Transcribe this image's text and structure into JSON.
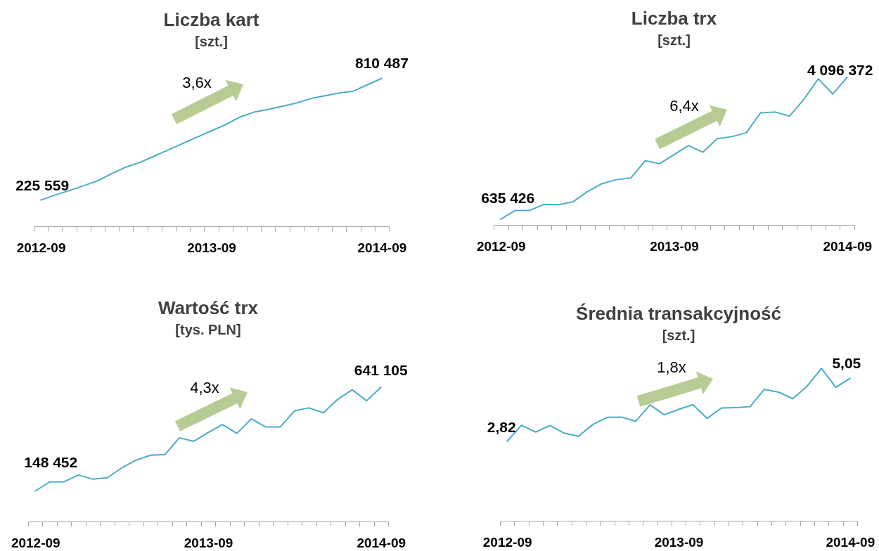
{
  "chart_data": [
    {
      "type": "line",
      "title": "Liczba kart",
      "subtitle": "[szt.]",
      "categories": [
        "2012-09",
        null,
        null,
        null,
        null,
        null,
        null,
        null,
        null,
        null,
        null,
        null,
        "2013-09",
        null,
        null,
        null,
        null,
        null,
        null,
        null,
        null,
        null,
        null,
        null,
        "2014-09"
      ],
      "values": [
        225559,
        249000,
        271000,
        294000,
        318000,
        353000,
        384000,
        407000,
        437000,
        467000,
        498000,
        528000,
        558000,
        588000,
        624000,
        648000,
        661000,
        676000,
        692000,
        713000,
        727000,
        740000,
        749000,
        780000,
        810487
      ],
      "color": "#4bacc6",
      "value_labels": [
        "225 559",
        null,
        null,
        null,
        null,
        null,
        null,
        null,
        null,
        null,
        null,
        null,
        null,
        null,
        null,
        null,
        null,
        null,
        null,
        null,
        null,
        null,
        null,
        null,
        "810 487"
      ],
      "tick_labels": "x",
      "annotations": [
        "3,6x"
      ]
    },
    {
      "type": "line",
      "title": "Liczba trx",
      "subtitle": "[szt.]",
      "categories": [
        "2012-09",
        null,
        null,
        null,
        null,
        null,
        null,
        null,
        null,
        null,
        null,
        null,
        "2013-09",
        null,
        null,
        null,
        null,
        null,
        null,
        null,
        null,
        null,
        null,
        null,
        "2014-09"
      ],
      "values": [
        635426,
        850000,
        850000,
        1000000,
        990000,
        1060000,
        1310000,
        1500000,
        1600000,
        1640000,
        2060000,
        1990000,
        2210000,
        2430000,
        2270000,
        2600000,
        2650000,
        2740000,
        3230000,
        3250000,
        3150000,
        3560000,
        4060000,
        3690000,
        4096372
      ],
      "color": "#4bacc6",
      "value_labels": [
        "635 426",
        null,
        null,
        null,
        null,
        null,
        null,
        null,
        null,
        null,
        null,
        null,
        null,
        null,
        null,
        null,
        null,
        null,
        null,
        null,
        null,
        null,
        null,
        null,
        "4 096 372"
      ],
      "tick_labels": "x",
      "annotations": [
        "6,4x"
      ]
    },
    {
      "type": "line",
      "title": "Wartość trx",
      "subtitle": "[tys. PLN]",
      "categories": [
        "2012-09",
        null,
        null,
        null,
        null,
        null,
        null,
        null,
        null,
        null,
        null,
        null,
        "2013-09",
        null,
        null,
        null,
        null,
        null,
        null,
        null,
        null,
        null,
        null,
        null,
        "2014-09"
      ],
      "values": [
        148452,
        191000,
        192000,
        224000,
        204000,
        211000,
        258000,
        295000,
        318000,
        321000,
        401000,
        384000,
        426000,
        464000,
        422000,
        491000,
        452000,
        452000,
        529000,
        543000,
        520000,
        584000,
        629000,
        577000,
        641105
      ],
      "color": "#4bacc6",
      "value_labels": [
        "148 452",
        null,
        null,
        null,
        null,
        null,
        null,
        null,
        null,
        null,
        null,
        null,
        null,
        null,
        null,
        null,
        null,
        null,
        null,
        null,
        null,
        null,
        null,
        null,
        "641 105"
      ],
      "tick_labels": "x",
      "annotations": [
        "4,3x"
      ]
    },
    {
      "type": "line",
      "title": "Średnia transakcyjność",
      "subtitle": "[szt.]",
      "categories": [
        "2012-09",
        null,
        null,
        null,
        null,
        null,
        null,
        null,
        null,
        null,
        null,
        null,
        "2013-09",
        null,
        null,
        null,
        null,
        null,
        null,
        null,
        null,
        null,
        null,
        null,
        "2014-09"
      ],
      "values": [
        2.82,
        3.39,
        3.15,
        3.38,
        3.11,
        3.0,
        3.42,
        3.67,
        3.68,
        3.53,
        4.11,
        3.76,
        3.95,
        4.12,
        3.63,
        4.0,
        4.01,
        4.05,
        4.66,
        4.56,
        4.33,
        4.78,
        5.4,
        4.73,
        5.05
      ],
      "color": "#4bacc6",
      "value_labels": [
        "2,82",
        null,
        null,
        null,
        null,
        null,
        null,
        null,
        null,
        null,
        null,
        null,
        null,
        null,
        null,
        null,
        null,
        null,
        null,
        null,
        null,
        null,
        null,
        null,
        "5,05"
      ],
      "tick_labels": "x",
      "annotations": [
        "1,8x"
      ]
    }
  ]
}
